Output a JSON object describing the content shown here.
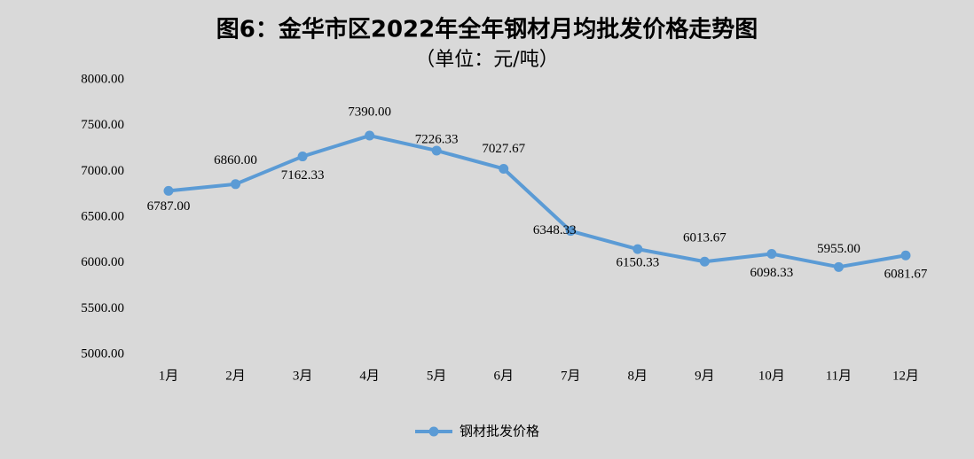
{
  "chart_data": {
    "type": "line",
    "title": "图6：金华市区2022年全年钢材月均批发价格走势图",
    "subtitle": "（单位：元/吨）",
    "categories": [
      "1月",
      "2月",
      "3月",
      "4月",
      "5月",
      "6月",
      "7月",
      "8月",
      "9月",
      "10月",
      "11月",
      "12月"
    ],
    "series": [
      {
        "name": "钢材批发价格",
        "color": "#5b9bd5",
        "values": [
          6787,
          6860,
          7162.33,
          7390,
          7226.33,
          7027.67,
          6348.33,
          6150.33,
          6013.67,
          6098.33,
          5955,
          6081.67
        ],
        "value_labels": [
          "6787.00",
          "6860.00",
          "7162.33",
          "7390.00",
          "7226.33",
          "7027.67",
          "6348.33",
          "6150.33",
          "6013.67",
          "6098.33",
          "5955.00",
          "6081.67"
        ]
      }
    ],
    "ylim": [
      5000,
      8000
    ],
    "yticks": [
      {
        "value": 5000,
        "label": "5000.00"
      },
      {
        "value": 5500,
        "label": "5500.00"
      },
      {
        "value": 6000,
        "label": "6000.00"
      },
      {
        "value": 6500,
        "label": "6500.00"
      },
      {
        "value": 7000,
        "label": "7000.00"
      },
      {
        "value": 7500,
        "label": "7500.00"
      },
      {
        "value": 8000,
        "label": "8000.00"
      }
    ],
    "legend": "bottom"
  }
}
